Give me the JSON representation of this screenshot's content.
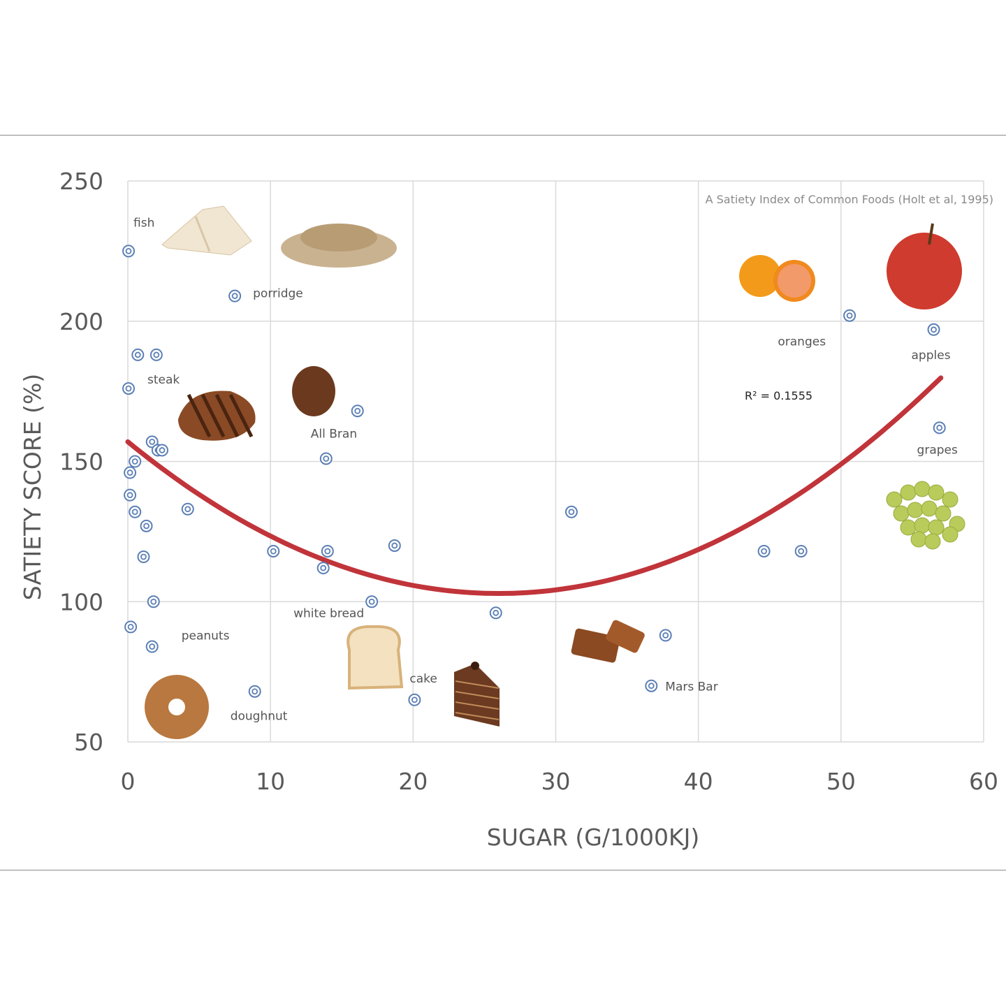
{
  "chart_data": {
    "type": "scatter",
    "title": "A Satiety Index of Common Foods (Holt et al, 1995)",
    "xlabel": "SUGAR (G/1000KJ)",
    "ylabel": "SATIETY SCORE (%)",
    "xlim": [
      0,
      60
    ],
    "ylim": [
      50,
      250
    ],
    "xticks": [
      "0",
      "10",
      "20",
      "30",
      "40",
      "50",
      "60"
    ],
    "yticks": [
      "50",
      "100",
      "150",
      "200",
      "250"
    ],
    "grid": true,
    "r_squared_label": "R² = 0.1555",
    "trendline": {
      "type": "polynomial-2",
      "coefficients": [
        157,
        -4.16,
        0.08
      ],
      "color": "#c0343a"
    },
    "marker_color": "#5b7fb5",
    "points": [
      {
        "x": 0.05,
        "y": 225,
        "label": "fish"
      },
      {
        "x": 7.5,
        "y": 209,
        "label": "porridge"
      },
      {
        "x": 0.7,
        "y": 188
      },
      {
        "x": 2.0,
        "y": 188
      },
      {
        "x": 0.05,
        "y": 176,
        "label": "steak"
      },
      {
        "x": 16.1,
        "y": 168
      },
      {
        "x": 1.7,
        "y": 157
      },
      {
        "x": 2.1,
        "y": 154
      },
      {
        "x": 2.4,
        "y": 154
      },
      {
        "x": 13.9,
        "y": 151,
        "label": "All Bran"
      },
      {
        "x": 0.5,
        "y": 150
      },
      {
        "x": 0.15,
        "y": 146
      },
      {
        "x": 0.15,
        "y": 138
      },
      {
        "x": 0.5,
        "y": 132
      },
      {
        "x": 4.2,
        "y": 133
      },
      {
        "x": 1.3,
        "y": 127
      },
      {
        "x": 31.1,
        "y": 132
      },
      {
        "x": 1.1,
        "y": 116
      },
      {
        "x": 10.2,
        "y": 118
      },
      {
        "x": 14.0,
        "y": 118
      },
      {
        "x": 13.7,
        "y": 112
      },
      {
        "x": 18.7,
        "y": 120
      },
      {
        "x": 44.6,
        "y": 118
      },
      {
        "x": 47.2,
        "y": 118
      },
      {
        "x": 17.1,
        "y": 100,
        "label": "white bread"
      },
      {
        "x": 1.8,
        "y": 100
      },
      {
        "x": 25.8,
        "y": 96
      },
      {
        "x": 0.2,
        "y": 91
      },
      {
        "x": 1.7,
        "y": 84,
        "label": "peanuts"
      },
      {
        "x": 37.7,
        "y": 88
      },
      {
        "x": 36.7,
        "y": 70,
        "label": "Mars Bar"
      },
      {
        "x": 8.9,
        "y": 68,
        "label": "doughnut"
      },
      {
        "x": 20.1,
        "y": 65,
        "label": "cake"
      },
      {
        "x": 50.6,
        "y": 202,
        "label": "oranges"
      },
      {
        "x": 56.5,
        "y": 197,
        "label": "apples"
      },
      {
        "x": 56.9,
        "y": 162,
        "label": "grapes"
      }
    ],
    "food_pictures": [
      "fish",
      "porridge",
      "steak",
      "All Bran",
      "white bread",
      "cake",
      "doughnut",
      "Mars Bar",
      "oranges",
      "apples",
      "grapes"
    ]
  }
}
